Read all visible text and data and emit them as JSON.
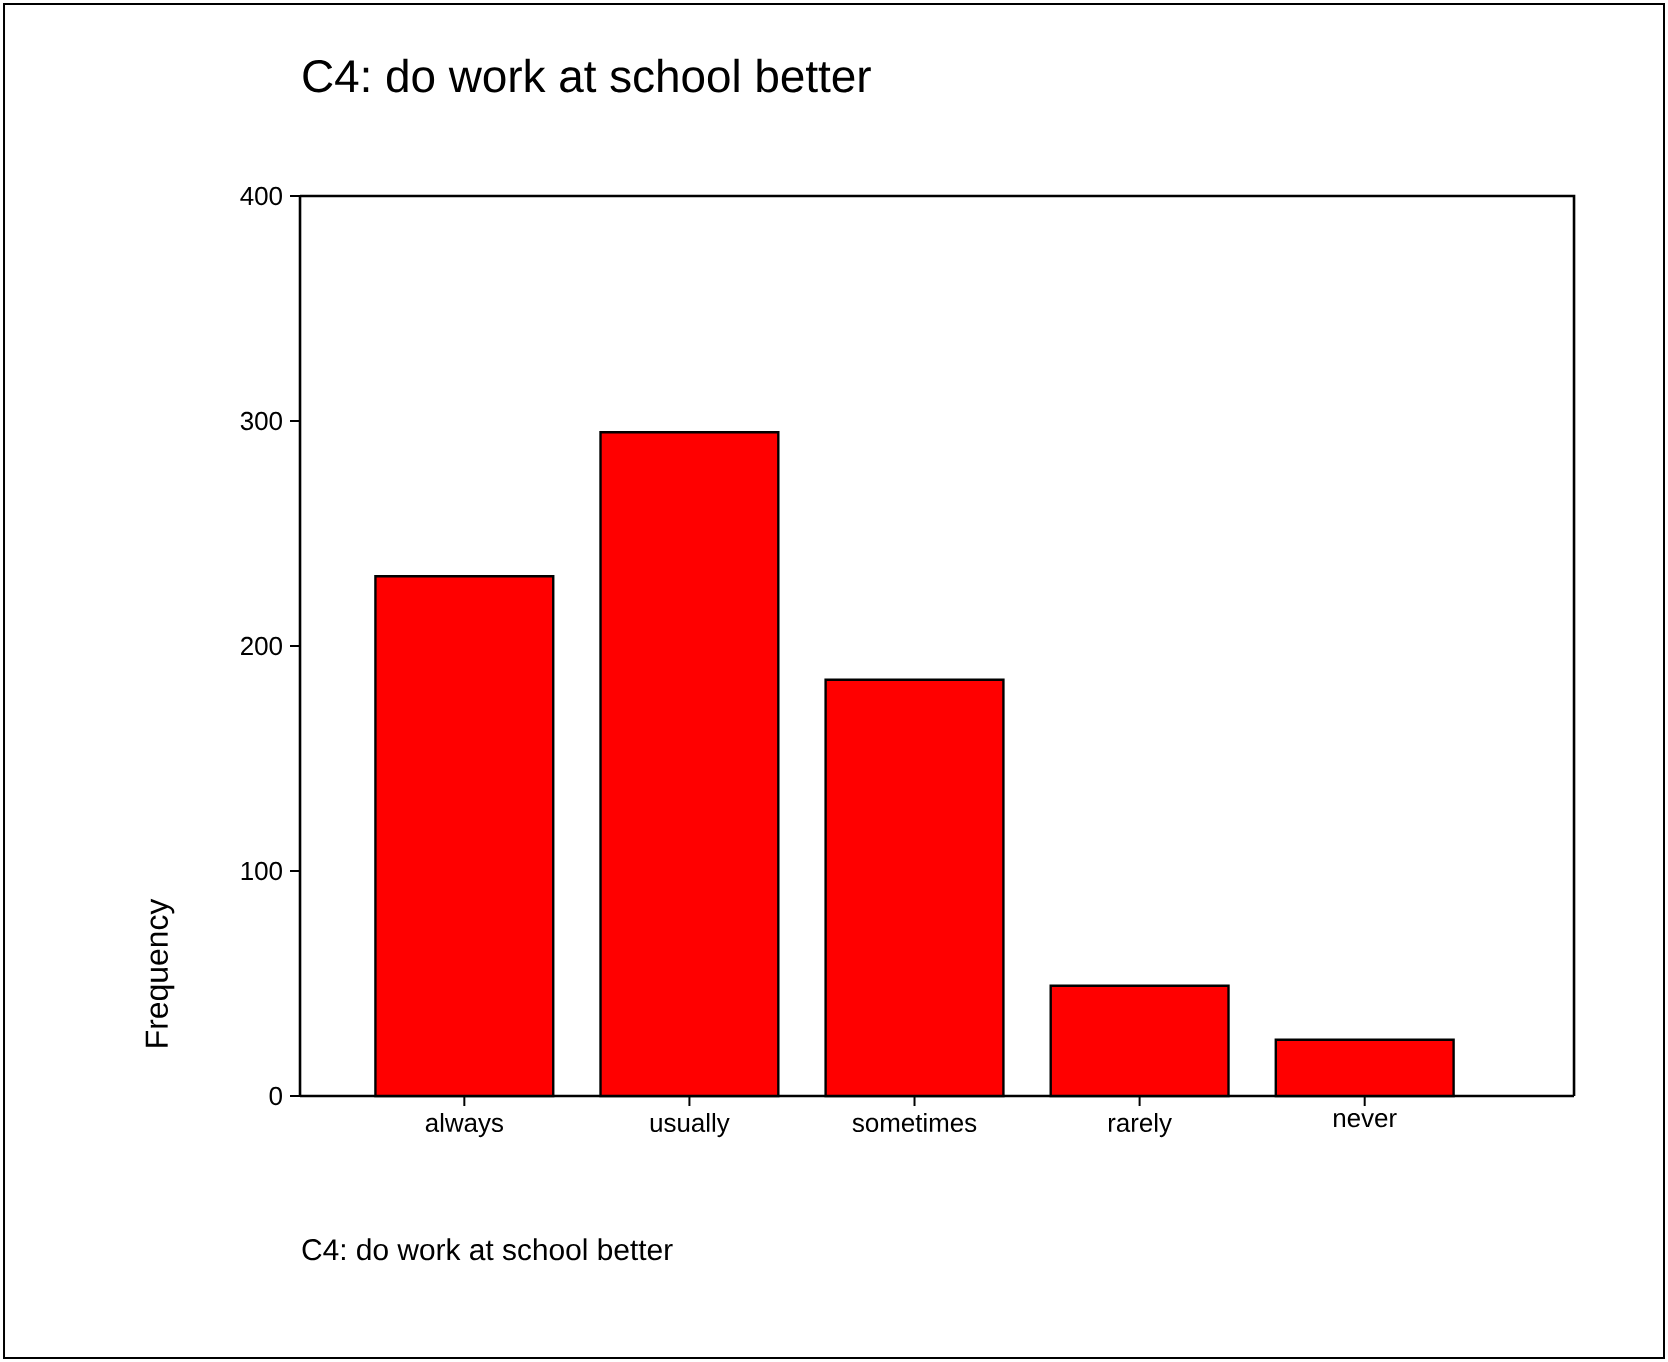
{
  "chart_data": {
    "type": "bar",
    "title": "C4: do work at school better",
    "xlabel": "C4: do work at school better",
    "ylabel": "Frequency",
    "categories": [
      "always",
      "usually",
      "sometimes",
      "rarely",
      "never"
    ],
    "values": [
      231,
      295,
      185,
      49,
      25
    ],
    "color": "#ff0000",
    "ylim": [
      0,
      400
    ],
    "yticks": [
      0,
      100,
      200,
      300,
      400
    ],
    "grid": false
  }
}
